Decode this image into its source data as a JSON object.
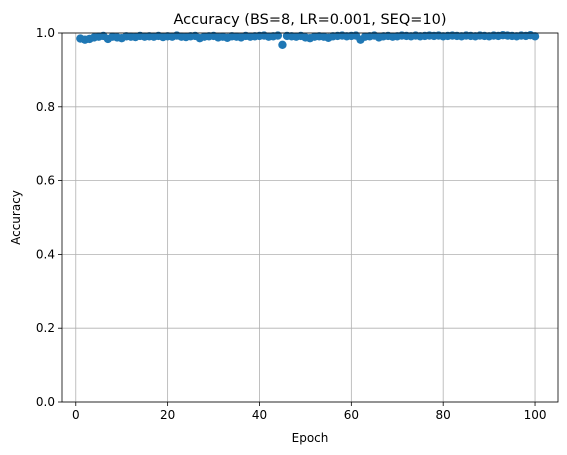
{
  "chart_data": {
    "type": "scatter",
    "title": "Accuracy (BS=8, LR=0.001, SEQ=10)",
    "xlabel": "Epoch",
    "ylabel": "Accuracy",
    "xlim": [
      -3,
      105
    ],
    "ylim": [
      0.0,
      1.0
    ],
    "xticks": [
      0,
      20,
      40,
      60,
      80,
      100
    ],
    "yticks": [
      0.0,
      0.2,
      0.4,
      0.6,
      0.8,
      1.0
    ],
    "xtick_labels": [
      "0",
      "20",
      "40",
      "60",
      "80",
      "100"
    ],
    "ytick_labels": [
      "0.0",
      "0.2",
      "0.4",
      "0.6",
      "0.8",
      "1.0"
    ],
    "grid": true,
    "marker_color": "#1f77b4",
    "x": [
      1,
      2,
      3,
      4,
      5,
      6,
      7,
      8,
      9,
      10,
      11,
      12,
      13,
      14,
      15,
      16,
      17,
      18,
      19,
      20,
      21,
      22,
      23,
      24,
      25,
      26,
      27,
      28,
      29,
      30,
      31,
      32,
      33,
      34,
      35,
      36,
      37,
      38,
      39,
      40,
      41,
      42,
      43,
      44,
      45,
      46,
      47,
      48,
      49,
      50,
      51,
      52,
      53,
      54,
      55,
      56,
      57,
      58,
      59,
      60,
      61,
      62,
      63,
      64,
      65,
      66,
      67,
      68,
      69,
      70,
      71,
      72,
      73,
      74,
      75,
      76,
      77,
      78,
      79,
      80,
      81,
      82,
      83,
      84,
      85,
      86,
      87,
      88,
      89,
      90,
      91,
      92,
      93,
      94,
      95,
      96,
      97,
      98,
      99,
      100
    ],
    "y": [
      0.985,
      0.982,
      0.984,
      0.988,
      0.99,
      0.992,
      0.984,
      0.99,
      0.988,
      0.986,
      0.991,
      0.99,
      0.989,
      0.992,
      0.99,
      0.991,
      0.99,
      0.992,
      0.989,
      0.991,
      0.99,
      0.993,
      0.99,
      0.989,
      0.991,
      0.992,
      0.986,
      0.99,
      0.991,
      0.992,
      0.988,
      0.99,
      0.987,
      0.991,
      0.99,
      0.988,
      0.992,
      0.99,
      0.991,
      0.992,
      0.993,
      0.99,
      0.991,
      0.993,
      0.968,
      0.992,
      0.991,
      0.99,
      0.992,
      0.988,
      0.986,
      0.99,
      0.991,
      0.99,
      0.987,
      0.991,
      0.992,
      0.993,
      0.991,
      0.992,
      0.993,
      0.982,
      0.99,
      0.991,
      0.993,
      0.988,
      0.991,
      0.992,
      0.99,
      0.991,
      0.993,
      0.992,
      0.991,
      0.993,
      0.991,
      0.992,
      0.993,
      0.992,
      0.993,
      0.991,
      0.992,
      0.993,
      0.992,
      0.991,
      0.993,
      0.992,
      0.991,
      0.993,
      0.992,
      0.991,
      0.993,
      0.992,
      0.994,
      0.993,
      0.992,
      0.991,
      0.993,
      0.992,
      0.994,
      0.991
    ]
  }
}
